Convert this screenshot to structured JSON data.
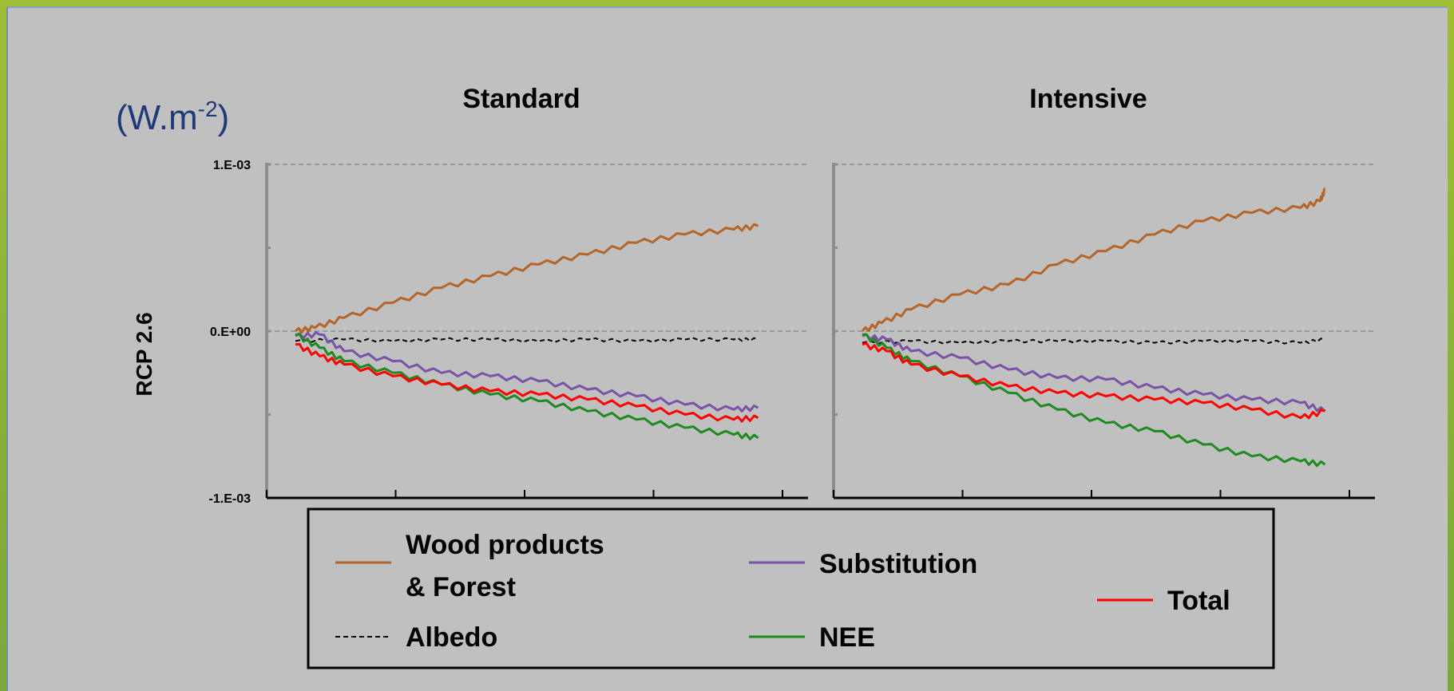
{
  "unit_label": {
    "base": "(W.m",
    "sup": "-2",
    "close": ")"
  },
  "row_label": "RCP 2.6",
  "chart_data": [
    {
      "type": "line",
      "title": "Standard",
      "xlabel": "",
      "ylabel": "RCP 2.6",
      "ylim": [
        -0.001,
        0.001
      ],
      "y_ticks": [
        "1.E-03",
        "0.E+00",
        "-1.E-03"
      ],
      "y_tick_values": [
        0.001,
        0,
        -0.001
      ],
      "x_range": [
        0,
        100
      ],
      "grid": "dashed at 1.E-03 and 0.E+00",
      "series": [
        {
          "name": "Wood products & Forest",
          "color": "#b5652a",
          "style": "solid",
          "x": [
            0,
            4,
            10,
            20,
            30,
            40,
            50,
            60,
            70,
            80,
            90,
            95
          ],
          "values": [
            0.0,
            2e-05,
            8e-05,
            0.00017,
            0.00026,
            0.00033,
            0.0004,
            0.00046,
            0.00053,
            0.00058,
            0.00061,
            0.00063
          ]
        },
        {
          "name": "Albedo",
          "color": "#000000",
          "style": "dashed",
          "x": [
            0,
            10,
            20,
            30,
            40,
            50,
            60,
            70,
            80,
            90,
            95
          ],
          "values": [
            -6e-05,
            -5e-05,
            -6e-05,
            -5e-05,
            -5e-05,
            -6e-05,
            -5e-05,
            -6e-05,
            -5e-05,
            -5e-05,
            -5e-05
          ]
        },
        {
          "name": "Substitution",
          "color": "#7a52a6",
          "style": "solid",
          "x": [
            0,
            5,
            10,
            20,
            30,
            40,
            50,
            60,
            70,
            80,
            90,
            95
          ],
          "values": [
            -3e-05,
            -2e-05,
            -0.00012,
            -0.00018,
            -0.00025,
            -0.00027,
            -0.0003,
            -0.00035,
            -0.00039,
            -0.00044,
            -0.00047,
            -0.00046
          ]
        },
        {
          "name": "NEE",
          "color": "#1f8a1f",
          "style": "solid",
          "x": [
            0,
            5,
            10,
            20,
            30,
            40,
            50,
            60,
            70,
            80,
            90,
            95
          ],
          "values": [
            -2e-05,
            -0.0001,
            -0.00018,
            -0.00025,
            -0.00032,
            -0.00038,
            -0.00042,
            -0.00048,
            -0.00053,
            -0.00058,
            -0.00062,
            -0.00064
          ]
        },
        {
          "name": "Total",
          "color": "#ff0000",
          "style": "solid",
          "x": [
            0,
            5,
            10,
            20,
            30,
            40,
            50,
            60,
            70,
            80,
            90,
            95
          ],
          "values": [
            -8e-05,
            -0.00015,
            -0.0002,
            -0.00027,
            -0.00032,
            -0.00036,
            -0.00038,
            -0.00041,
            -0.00045,
            -0.0005,
            -0.00053,
            -0.00052
          ]
        }
      ]
    },
    {
      "type": "line",
      "title": "Intensive",
      "xlabel": "",
      "ylabel": "",
      "ylim": [
        -0.001,
        0.001
      ],
      "y_ticks": [],
      "y_tick_values": [
        0.001,
        0,
        -0.001
      ],
      "x_range": [
        0,
        100
      ],
      "grid": "dashed at 1.E-03 and 0.E+00",
      "series": [
        {
          "name": "Wood products & Forest",
          "color": "#b5652a",
          "style": "solid",
          "x": [
            0,
            4,
            10,
            20,
            30,
            40,
            50,
            60,
            70,
            80,
            90,
            94,
            95
          ],
          "values": [
            0.0,
            5e-05,
            0.00013,
            0.00022,
            0.00028,
            0.0004,
            0.00048,
            0.00058,
            0.00066,
            0.00071,
            0.00074,
            0.00078,
            0.00085
          ]
        },
        {
          "name": "Albedo",
          "color": "#000000",
          "style": "dashed",
          "x": [
            0,
            10,
            20,
            30,
            40,
            50,
            60,
            70,
            80,
            90,
            95
          ],
          "values": [
            -7e-05,
            -6e-05,
            -7e-05,
            -6e-05,
            -6e-05,
            -6e-05,
            -7e-05,
            -6e-05,
            -6e-05,
            -7e-05,
            -5e-05
          ]
        },
        {
          "name": "Substitution",
          "color": "#7a52a6",
          "style": "solid",
          "x": [
            0,
            5,
            10,
            20,
            30,
            40,
            50,
            60,
            70,
            80,
            90,
            95
          ],
          "values": [
            -3e-05,
            -5e-05,
            -0.00012,
            -0.00016,
            -0.00023,
            -0.00028,
            -0.00029,
            -0.00034,
            -0.00038,
            -0.00041,
            -0.00043,
            -0.00048
          ]
        },
        {
          "name": "NEE",
          "color": "#1f8a1f",
          "style": "solid",
          "x": [
            0,
            5,
            10,
            20,
            30,
            40,
            50,
            60,
            70,
            80,
            90,
            95
          ],
          "values": [
            -2e-05,
            -0.0001,
            -0.00018,
            -0.00027,
            -0.00037,
            -0.00047,
            -0.00055,
            -0.0006,
            -0.00068,
            -0.00075,
            -0.00078,
            -0.0008
          ]
        },
        {
          "name": "Total",
          "color": "#ff0000",
          "style": "solid",
          "x": [
            0,
            5,
            10,
            20,
            30,
            40,
            50,
            60,
            70,
            80,
            90,
            95
          ],
          "values": [
            -8e-05,
            -0.00012,
            -0.0002,
            -0.00027,
            -0.00033,
            -0.00037,
            -0.00039,
            -0.00041,
            -0.00043,
            -0.00047,
            -0.00052,
            -0.00048
          ]
        }
      ]
    }
  ],
  "legend": {
    "items": [
      {
        "label_lines": [
          "Wood products",
          "& Forest"
        ],
        "color": "#b5652a",
        "style": "solid"
      },
      {
        "label_lines": [
          "Substitution"
        ],
        "color": "#7a52a6",
        "style": "solid"
      },
      {
        "label_lines": [
          "Total"
        ],
        "color": "#ff0000",
        "style": "solid"
      },
      {
        "label_lines": [
          "Albedo"
        ],
        "color": "#000000",
        "style": "dashed"
      },
      {
        "label_lines": [
          "NEE"
        ],
        "color": "#1f8a1f",
        "style": "solid"
      }
    ]
  }
}
